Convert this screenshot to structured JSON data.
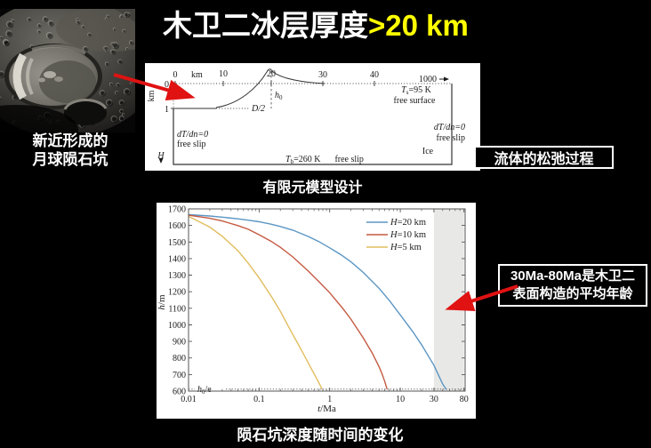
{
  "slide": {
    "title": "木卫二冰层厚度",
    "title_highlight": ">20 km",
    "moon_caption": [
      "新近形成的",
      "月球陨石坑"
    ],
    "model_caption": "有限元模型设计",
    "flow_box": "流体的松弛过程",
    "age_box": [
      "30Ma-80Ma是木卫二",
      "表面构造的平均年龄"
    ],
    "chart_caption": "陨石坑深度随时间的变化",
    "accent_color": "#ffff00",
    "arrow_color": "#e01212"
  },
  "model_diagram": {
    "top_unit": "km",
    "top_ticks": [
      "0",
      "10",
      "20",
      "30",
      "40"
    ],
    "far_tick": "1000",
    "y_unit": "km",
    "y_ticks": [
      "0",
      "1"
    ],
    "h0": {
      "sym": "h",
      "sub": "0"
    },
    "half_width": "D/2",
    "surface_temp": {
      "sym": "T",
      "sub": "s",
      "rest": "=95 K"
    },
    "free_surface": "free surface",
    "left_bc": [
      "dT/dn=0",
      "free slip"
    ],
    "right_bc": [
      "dT/dn=0",
      "free slip"
    ],
    "ice": "Ice",
    "bottom_bc": {
      "sym": "T",
      "sub": "b",
      "rest": "=260 K",
      "extra": "free slip"
    },
    "depth_sym": "H"
  },
  "chart_data": {
    "type": "line",
    "x_scale": "log",
    "xlim": [
      0.01,
      83
    ],
    "ylim": [
      600,
      1700
    ],
    "xlabel_parts": {
      "it": "t",
      "rest": "/Ma"
    },
    "ylabel_parts": {
      "it": "h",
      "rest": "/m"
    },
    "x_ticks": [
      {
        "v": 0.01,
        "label": "0.01"
      },
      {
        "v": 0.1,
        "label": "0.1"
      },
      {
        "v": 1,
        "label": "1"
      },
      {
        "v": 10,
        "label": "10"
      },
      {
        "v": 30,
        "label": "30"
      },
      {
        "v": 80,
        "label": "80"
      }
    ],
    "y_tick_step": 100,
    "shaded_region": {
      "from": 30,
      "to": 80,
      "color": "#e8e8e6"
    },
    "reference_line": {
      "y": 612,
      "label_parts": {
        "it": "h",
        "sub": "0",
        "rest": "/e"
      }
    },
    "legend_position": "upper right",
    "series": [
      {
        "legend": {
          "it": "H",
          "rest": "=20 km"
        },
        "color": "#5b96c4",
        "points": [
          [
            0.01,
            1665
          ],
          [
            0.02,
            1657
          ],
          [
            0.03,
            1650
          ],
          [
            0.05,
            1640
          ],
          [
            0.07,
            1632
          ],
          [
            0.1,
            1622
          ],
          [
            0.15,
            1607
          ],
          [
            0.2,
            1594
          ],
          [
            0.3,
            1572
          ],
          [
            0.5,
            1533
          ],
          [
            0.7,
            1503
          ],
          [
            1,
            1465
          ],
          [
            1.5,
            1419
          ],
          [
            2,
            1380
          ],
          [
            3,
            1316
          ],
          [
            5,
            1221
          ],
          [
            7,
            1147
          ],
          [
            10,
            1060
          ],
          [
            15,
            960
          ],
          [
            20,
            880
          ],
          [
            30,
            756
          ],
          [
            40,
            642
          ],
          [
            45,
            610
          ]
        ]
      },
      {
        "legend": {
          "it": "H",
          "rest": "=10 km"
        },
        "color": "#c55a41",
        "points": [
          [
            0.01,
            1662
          ],
          [
            0.02,
            1643
          ],
          [
            0.03,
            1627
          ],
          [
            0.05,
            1599
          ],
          [
            0.07,
            1577
          ],
          [
            0.1,
            1544
          ],
          [
            0.15,
            1503
          ],
          [
            0.2,
            1468
          ],
          [
            0.3,
            1410
          ],
          [
            0.5,
            1324
          ],
          [
            0.7,
            1262
          ],
          [
            1,
            1194
          ],
          [
            1.5,
            1104
          ],
          [
            2,
            1034
          ],
          [
            3,
            920
          ],
          [
            4,
            830
          ],
          [
            5,
            747
          ],
          [
            5.5,
            705
          ],
          [
            6,
            660
          ],
          [
            6.5,
            612
          ]
        ]
      },
      {
        "legend": {
          "it": "H",
          "rest": "=5 km"
        },
        "color": "#e2bd5e",
        "points": [
          [
            0.01,
            1655
          ],
          [
            0.02,
            1590
          ],
          [
            0.03,
            1535
          ],
          [
            0.05,
            1448
          ],
          [
            0.07,
            1372
          ],
          [
            0.1,
            1283
          ],
          [
            0.15,
            1170
          ],
          [
            0.2,
            1082
          ],
          [
            0.3,
            942
          ],
          [
            0.4,
            846
          ],
          [
            0.5,
            768
          ],
          [
            0.6,
            705
          ],
          [
            0.7,
            652
          ],
          [
            0.78,
            612
          ]
        ]
      }
    ]
  }
}
